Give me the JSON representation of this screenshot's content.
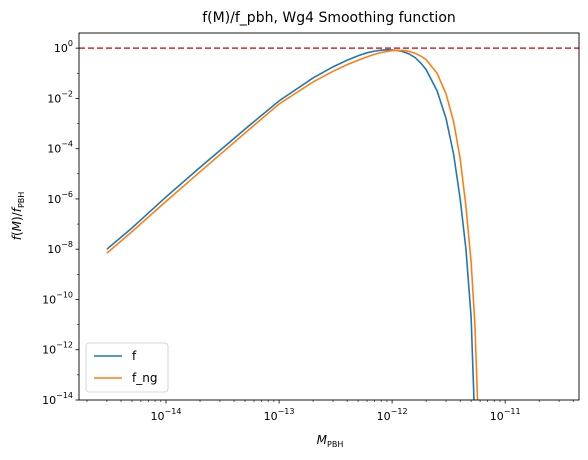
{
  "chart_data": {
    "type": "line",
    "title": "f(M)/f_pbh, Wg4 Smoothing function",
    "xlabel": {
      "base": "M",
      "sub": "PBH"
    },
    "ylabel": {
      "f": "f",
      "m": "M",
      "fpbh": "f",
      "sub": "PBH"
    },
    "x_scale": "log",
    "y_scale": "log",
    "xlim": [
      1.7e-15,
      4.5e-11
    ],
    "ylim": [
      1e-14,
      4.0
    ],
    "x_ticks": [
      {
        "value": 1e-14,
        "base": "10",
        "exp": "−14"
      },
      {
        "value": 1e-13,
        "base": "10",
        "exp": "−13"
      },
      {
        "value": 1e-12,
        "base": "10",
        "exp": "−12"
      },
      {
        "value": 1e-11,
        "base": "10",
        "exp": "−11"
      }
    ],
    "y_ticks": [
      {
        "value": 1e-14,
        "base": "10",
        "exp": "−14"
      },
      {
        "value": 1e-12,
        "base": "10",
        "exp": "−12"
      },
      {
        "value": 1e-10,
        "base": "10",
        "exp": "−10"
      },
      {
        "value": 1e-08,
        "base": "10",
        "exp": "−8"
      },
      {
        "value": 1e-06,
        "base": "10",
        "exp": "−6"
      },
      {
        "value": 0.0001,
        "base": "10",
        "exp": "−4"
      },
      {
        "value": 0.01,
        "base": "10",
        "exp": "−2"
      },
      {
        "value": 1,
        "base": "10",
        "exp": "0"
      }
    ],
    "grid": false,
    "legend_position": "lower-left",
    "hline": {
      "y": 1.0,
      "color": "#d62728",
      "style": "dashed"
    },
    "series": [
      {
        "name": "f",
        "color": "#1f77b4",
        "x": [
          3e-15,
          5e-15,
          1e-14,
          2e-14,
          5e-14,
          1e-13,
          2e-13,
          3e-13,
          4e-13,
          5e-13,
          6e-13,
          7e-13,
          8e-13,
          9e-13,
          1e-12,
          1.2e-12,
          1.4e-12,
          1.6e-12,
          1.8e-12,
          2e-12,
          2.5e-12,
          3e-12,
          3.5e-12,
          4e-12,
          4.5e-12,
          5e-12,
          5.3e-12
        ],
        "y": [
          1e-08,
          7e-08,
          1.2e-06,
          1.8e-05,
          0.0006,
          0.008,
          0.065,
          0.18,
          0.33,
          0.5,
          0.65,
          0.76,
          0.83,
          0.86,
          0.85,
          0.76,
          0.6,
          0.42,
          0.25,
          0.14,
          0.02,
          0.0016,
          6e-05,
          1e-06,
          1e-08,
          2e-11,
          1e-14
        ]
      },
      {
        "name": "f_ng",
        "color": "#ff7f0e",
        "x": [
          3e-15,
          5e-15,
          1e-14,
          2e-14,
          5e-14,
          1e-13,
          2e-13,
          3e-13,
          4e-13,
          5e-13,
          6e-13,
          7e-13,
          8e-13,
          9e-13,
          1e-12,
          1.2e-12,
          1.4e-12,
          1.6e-12,
          1.8e-12,
          2e-12,
          2.5e-12,
          3e-12,
          3.5e-12,
          4e-12,
          4.5e-12,
          5e-12,
          5.4e-12,
          5.7e-12
        ],
        "y": [
          7e-09,
          5e-08,
          8e-07,
          1.2e-05,
          0.00042,
          0.006,
          0.045,
          0.12,
          0.22,
          0.33,
          0.45,
          0.57,
          0.67,
          0.74,
          0.8,
          0.82,
          0.75,
          0.62,
          0.48,
          0.35,
          0.1,
          0.015,
          0.0012,
          4e-05,
          5e-07,
          3e-09,
          1e-11,
          1e-14
        ]
      }
    ]
  }
}
